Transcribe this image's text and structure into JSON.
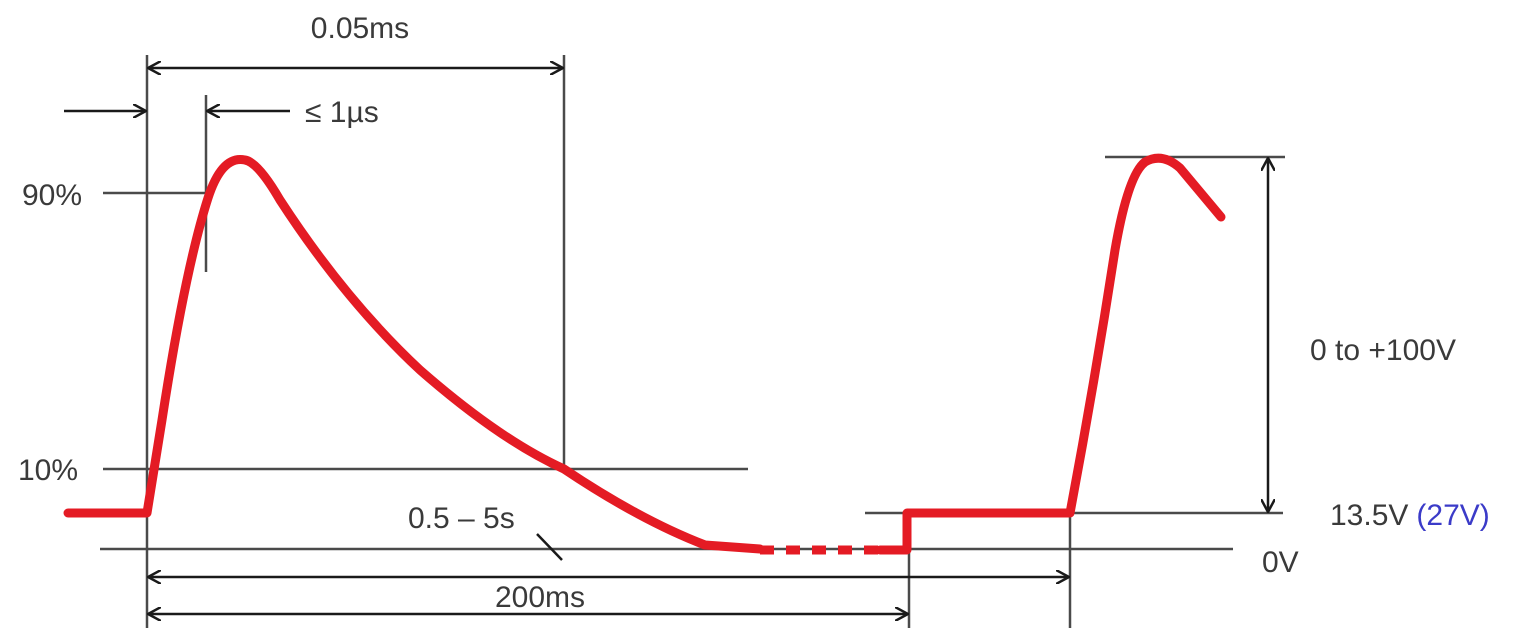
{
  "labels": {
    "t_005ms": "0.05ms",
    "t_rise": "≤ 1µs",
    "p90": "90%",
    "p10": "10%",
    "t_repeat": "0.5 – 5s",
    "t_200ms": "200ms",
    "amplitude": "0 to +100V",
    "supply": "13.5V",
    "supply_alt": "(27V)",
    "zero": "0V"
  },
  "colors": {
    "pulse": "#e41b24",
    "supply_alt": "#3b3bc8",
    "guides": "#4a4a4a"
  }
}
